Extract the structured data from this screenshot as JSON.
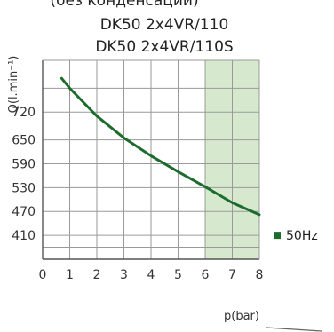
{
  "header_cropped": "(без конденсации)",
  "chart_data": {
    "type": "line",
    "title_lines": [
      "DK50 2x4VR/110",
      "DK50 2x4VR/110S"
    ],
    "xlabel": "p(bar)",
    "ylabel": "Q(l.min⁻¹)",
    "x_ticks": [
      0,
      1,
      2,
      3,
      4,
      5,
      6,
      7,
      8
    ],
    "xlim": [
      0,
      8
    ],
    "y_ticks": [
      410,
      470,
      530,
      590,
      650,
      720
    ],
    "ylim": [
      350,
      850
    ],
    "grid": true,
    "shaded_region": {
      "x_from": 6,
      "x_to": 8,
      "color": "#d6e9cf"
    },
    "series": [
      {
        "name": "50Hz",
        "color": "#1e6b2e",
        "x": [
          0.7,
          1.0,
          2.0,
          3.0,
          4.0,
          5.0,
          6.0,
          7.0,
          8.0
        ],
        "y": [
          805,
          780,
          710,
          655,
          610,
          570,
          532,
          492,
          462
        ]
      }
    ],
    "legend_position": "right"
  }
}
